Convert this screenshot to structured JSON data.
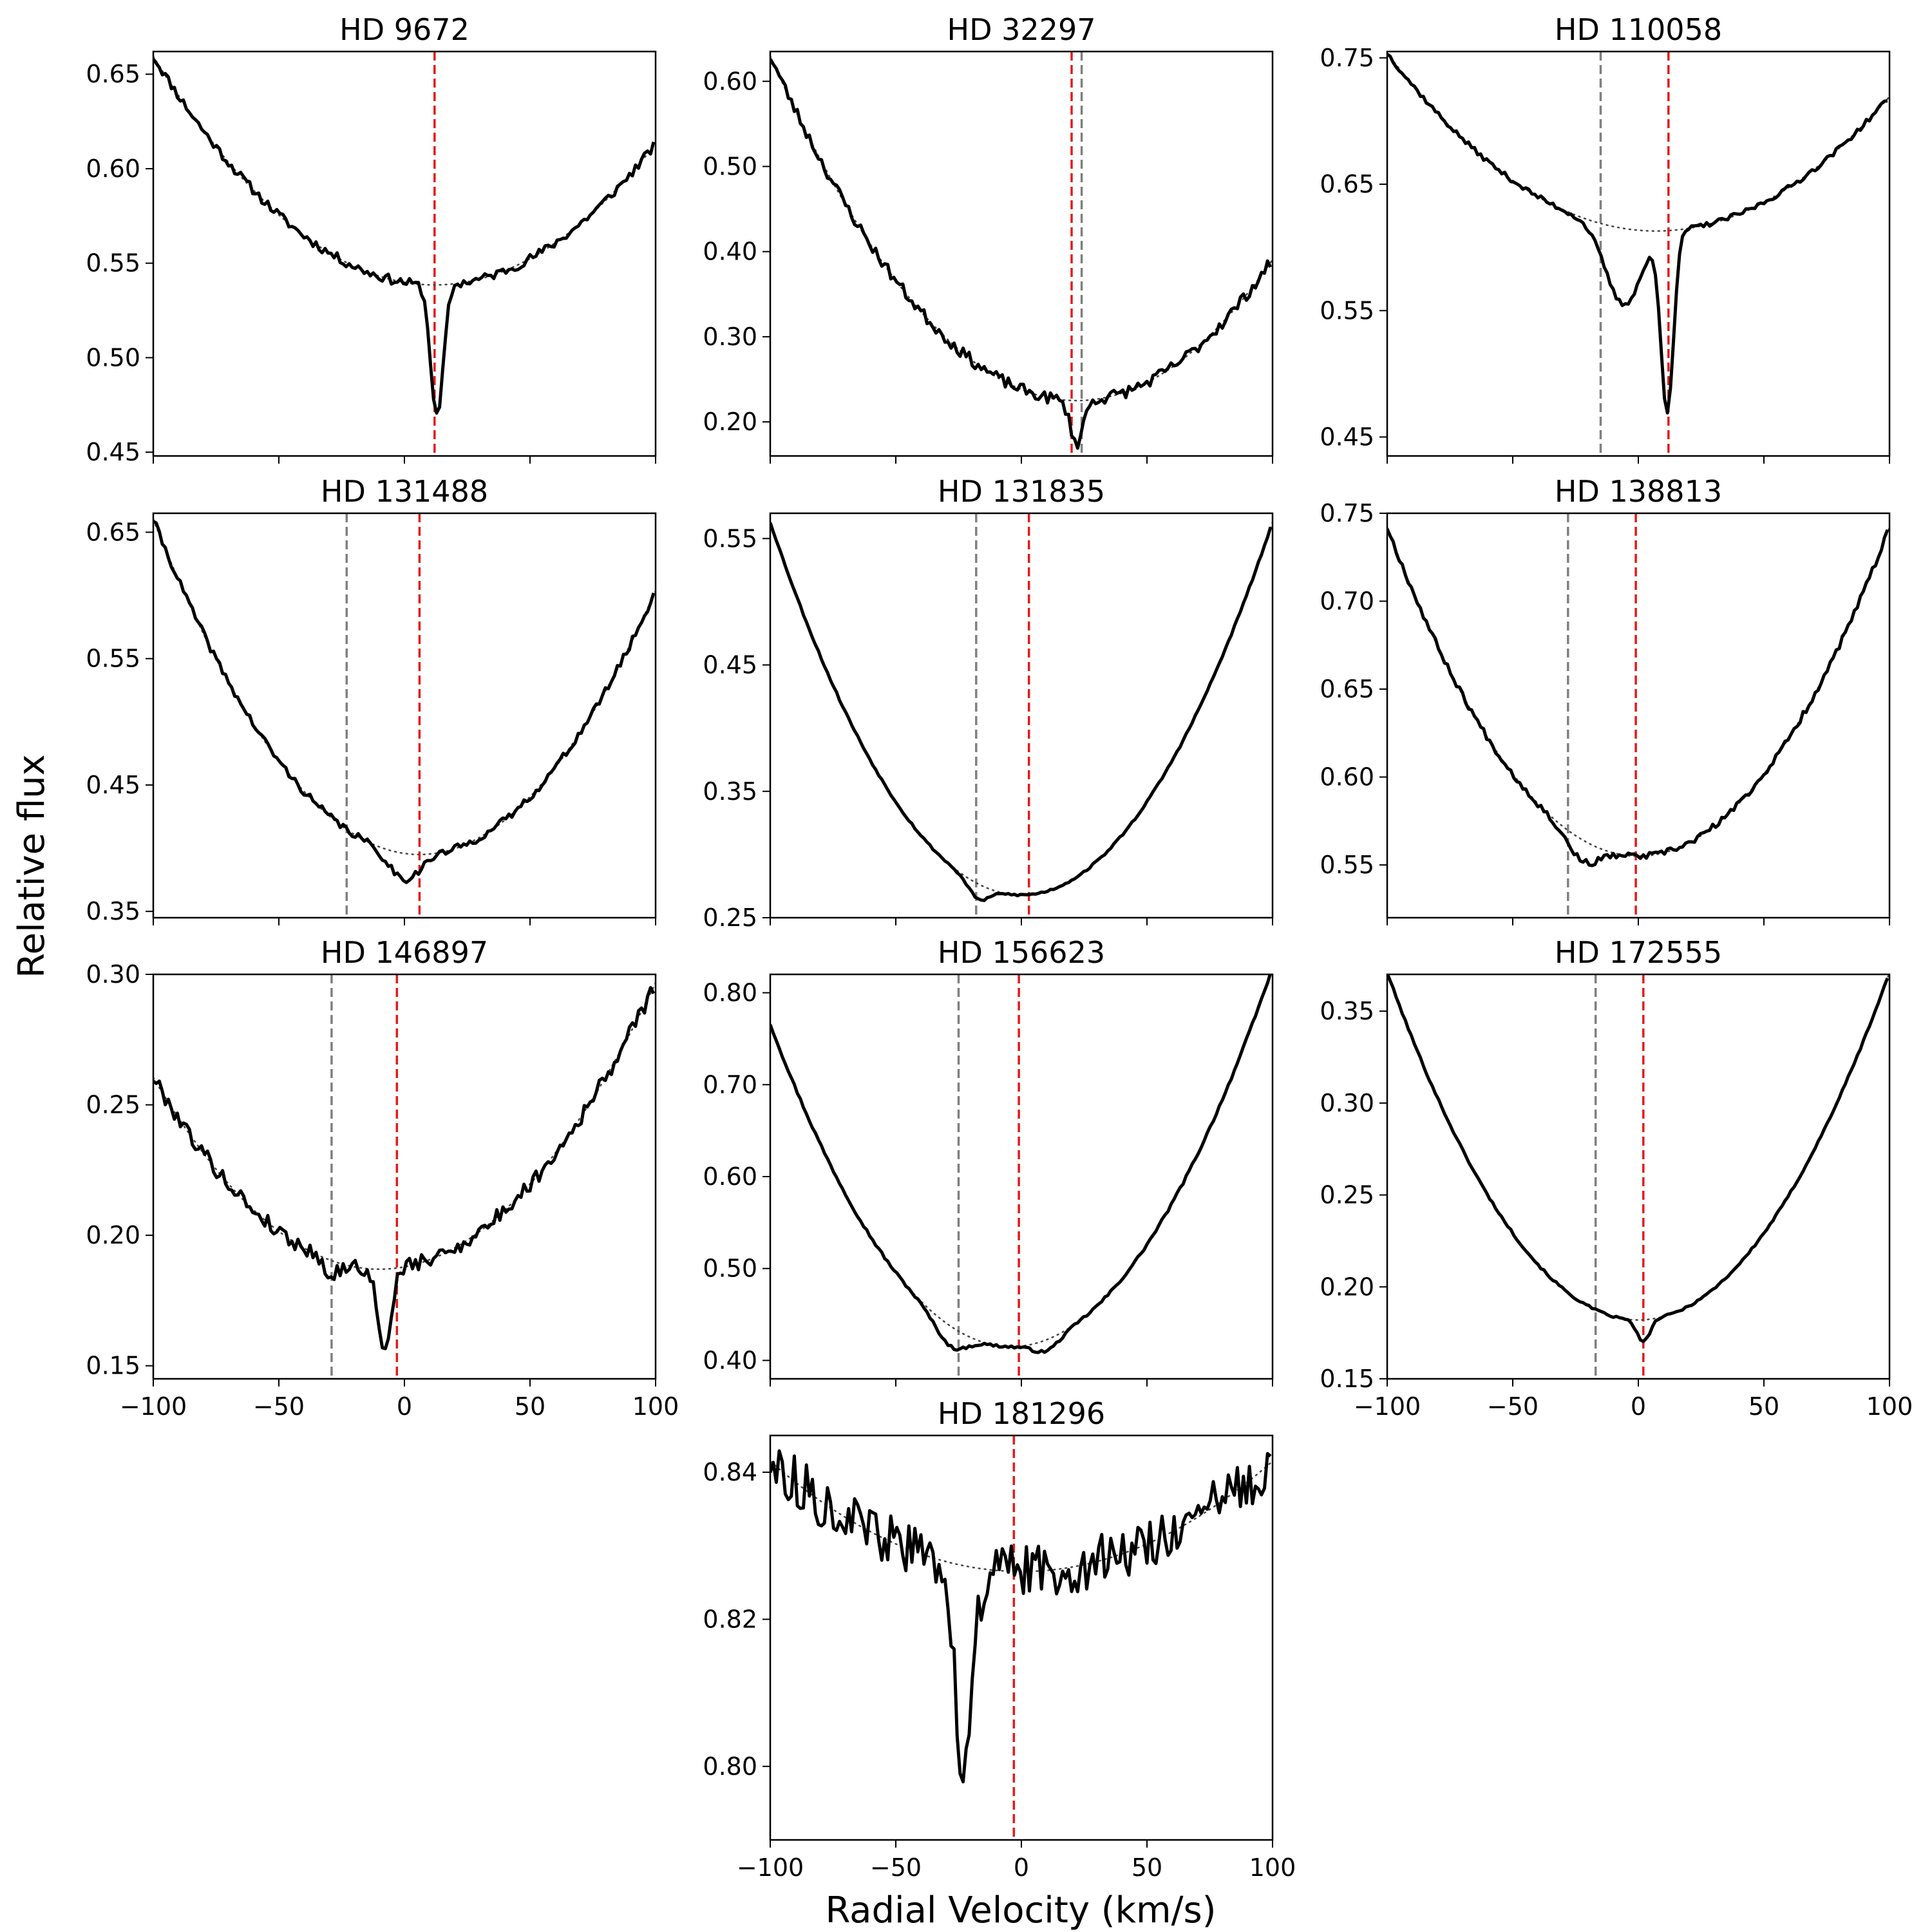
{
  "figure": {
    "xlabel": "Radial Velocity (km/s)",
    "ylabel": "Relative flux"
  },
  "style": {
    "profile_color": "#000000",
    "fit_color": "#444444",
    "rv_star_color": "#e31a1c",
    "rv_other_color": "#808080"
  },
  "chart_data": [
    {
      "type": "line",
      "title": "HD 9672",
      "xlim": [
        -100,
        100
      ],
      "ylim": [
        0.448,
        0.662
      ],
      "xticks": [
        -100,
        -50,
        0,
        50,
        100
      ],
      "xtick_labels_visible": false,
      "yticks": [
        0.45,
        0.5,
        0.55,
        0.6,
        0.65
      ],
      "ytick_labels": [
        "0.45",
        "0.50",
        "0.55",
        "0.60",
        "0.65"
      ],
      "vlines": [
        {
          "x": 12,
          "color": "red"
        }
      ],
      "fit": {
        "center": 12,
        "depth": 0.5385,
        "scale": 9.64e-06
      },
      "absorption": [
        {
          "center": 13,
          "width": 2.5,
          "depth": 0.07
        }
      ],
      "noise": 0.0025,
      "seed": 11
    },
    {
      "type": "line",
      "title": "HD 32297",
      "xlim": [
        -100,
        100
      ],
      "ylim": [
        0.16,
        0.635
      ],
      "xticks": [
        -100,
        -50,
        0,
        50,
        100
      ],
      "xtick_labels_visible": false,
      "yticks": [
        0.2,
        0.3,
        0.4,
        0.5,
        0.6
      ],
      "ytick_labels": [
        "0.20",
        "0.30",
        "0.40",
        "0.50",
        "0.60"
      ],
      "vlines": [
        {
          "x": 24,
          "color": "gray"
        },
        {
          "x": 20,
          "color": "red"
        }
      ],
      "fit": {
        "center": 22,
        "depth": 0.225,
        "scale": 2.72e-05
      },
      "absorption": [
        {
          "center": 22,
          "width": 2.5,
          "depth": 0.05
        }
      ],
      "noise": 0.007,
      "seed": 23
    },
    {
      "type": "line",
      "title": "HD 110058",
      "xlim": [
        -100,
        100
      ],
      "ylim": [
        0.435,
        0.755
      ],
      "xticks": [
        -100,
        -50,
        0,
        50,
        100
      ],
      "xtick_labels_visible": false,
      "yticks": [
        0.45,
        0.55,
        0.65,
        0.75
      ],
      "ytick_labels": [
        "0.45",
        "0.55",
        "0.65",
        "0.75"
      ],
      "vlines": [
        {
          "x": -15,
          "color": "gray"
        },
        {
          "x": 12,
          "color": "red"
        }
      ],
      "fit": {
        "center": 7,
        "depth": 0.613,
        "scale": 1.23e-05
      },
      "absorption": [
        {
          "center": -6,
          "width": 7,
          "depth": 0.06
        },
        {
          "center": 11.5,
          "width": 2.5,
          "depth": 0.14
        }
      ],
      "noise": 0.002,
      "seed": 37
    },
    {
      "type": "line",
      "title": "HD 131488",
      "xlim": [
        -100,
        100
      ],
      "ylim": [
        0.345,
        0.665
      ],
      "xticks": [
        -100,
        -50,
        0,
        50,
        100
      ],
      "xtick_labels_visible": false,
      "yticks": [
        0.35,
        0.45,
        0.55,
        0.65
      ],
      "ytick_labels": [
        "0.35",
        "0.45",
        "0.55",
        "0.65"
      ],
      "vlines": [
        {
          "x": -23,
          "color": "gray"
        },
        {
          "x": 6,
          "color": "red"
        }
      ],
      "fit": {
        "center": 6,
        "depth": 0.395,
        "scale": 2.36e-05
      },
      "absorption": [
        {
          "center": 0,
          "width": 6,
          "depth": 0.02
        }
      ],
      "noise": 0.003,
      "seed": 41
    },
    {
      "type": "line",
      "title": "HD 131835",
      "xlim": [
        -100,
        100
      ],
      "ylim": [
        0.25,
        0.57
      ],
      "xticks": [
        -100,
        -50,
        0,
        50,
        100
      ],
      "xtick_labels_visible": false,
      "yticks": [
        0.25,
        0.35,
        0.45,
        0.55
      ],
      "ytick_labels": [
        "0.25",
        "0.35",
        "0.45",
        "0.55"
      ],
      "vlines": [
        {
          "x": -18,
          "color": "gray"
        },
        {
          "x": 3,
          "color": "red"
        }
      ],
      "fit": {
        "center": 0,
        "depth": 0.268,
        "scale": 2.95e-05
      },
      "absorption": [
        {
          "center": -17,
          "width": 4,
          "depth": 0.012
        }
      ],
      "noise": 0.0008,
      "seed": 53
    },
    {
      "type": "line",
      "title": "HD 138813",
      "xlim": [
        -100,
        100
      ],
      "ylim": [
        0.52,
        0.75
      ],
      "xticks": [
        -100,
        -50,
        0,
        50,
        100
      ],
      "xtick_labels_visible": false,
      "yticks": [
        0.55,
        0.6,
        0.65,
        0.7,
        0.75
      ],
      "ytick_labels": [
        "0.55",
        "0.60",
        "0.65",
        "0.70",
        "0.75"
      ],
      "vlines": [
        {
          "x": -28,
          "color": "gray"
        },
        {
          "x": -1,
          "color": "red"
        }
      ],
      "fit": {
        "center": 0,
        "depth": 0.555,
        "scale": 1.87e-05
      },
      "absorption": [
        {
          "center": -22,
          "width": 6,
          "depth": 0.012
        }
      ],
      "noise": 0.0018,
      "seed": 67
    },
    {
      "type": "line",
      "title": "HD 146897",
      "xlim": [
        -100,
        100
      ],
      "ylim": [
        0.145,
        0.3
      ],
      "xticks": [
        -100,
        -50,
        0,
        50,
        100
      ],
      "xtick_labels": [
        "−100",
        "−50",
        "0",
        "50",
        "100"
      ],
      "yticks": [
        0.15,
        0.2,
        0.25,
        0.3
      ],
      "ytick_labels": [
        "0.15",
        "0.20",
        "0.25",
        "0.30"
      ],
      "vlines": [
        {
          "x": -29,
          "color": "gray"
        },
        {
          "x": -3,
          "color": "red"
        }
      ],
      "fit": {
        "center": -10,
        "depth": 0.187,
        "scale": 9.07e-06
      },
      "absorption": [
        {
          "center": -8,
          "width": 2.5,
          "depth": 0.033
        },
        {
          "center": -29,
          "width": 2.5,
          "depth": 0.006
        }
      ],
      "noise": 0.003,
      "seed": 79
    },
    {
      "type": "line",
      "title": "HD 156623",
      "xlim": [
        -100,
        100
      ],
      "ylim": [
        0.38,
        0.82
      ],
      "xticks": [
        -100,
        -50,
        0,
        50,
        100
      ],
      "xtick_labels_visible": false,
      "yticks": [
        0.4,
        0.5,
        0.6,
        0.7,
        0.8
      ],
      "ytick_labels": [
        "0.40",
        "0.50",
        "0.60",
        "0.70",
        "0.80"
      ],
      "vlines": [
        {
          "x": -25,
          "color": "gray"
        },
        {
          "x": -1,
          "color": "red"
        }
      ],
      "fit": {
        "center": -4,
        "depth": 0.415,
        "scale": 3.81e-05
      },
      "absorption": [
        {
          "center": -28,
          "width": 6,
          "depth": 0.022
        },
        {
          "center": 10,
          "width": 5,
          "depth": 0.012
        }
      ],
      "noise": 0.0015,
      "seed": 97
    },
    {
      "type": "line",
      "title": "HD 172555",
      "xlim": [
        -100,
        100
      ],
      "ylim": [
        0.15,
        0.37
      ],
      "xticks": [
        -100,
        -50,
        0,
        50,
        100
      ],
      "xtick_labels": [
        "−100",
        "−50",
        "0",
        "50",
        "100"
      ],
      "yticks": [
        0.15,
        0.2,
        0.25,
        0.3,
        0.35
      ],
      "ytick_labels": [
        "0.15",
        "0.20",
        "0.25",
        "0.30",
        "0.35"
      ],
      "vlines": [
        {
          "x": -17,
          "color": "gray"
        },
        {
          "x": 2,
          "color": "red"
        }
      ],
      "fit": {
        "center": 0,
        "depth": 0.182,
        "scale": 1.89e-05
      },
      "absorption": [
        {
          "center": 2,
          "width": 2.5,
          "depth": 0.012
        }
      ],
      "noise": 0.0006,
      "seed": 101
    },
    {
      "type": "line",
      "title": "HD 181296",
      "xlim": [
        -100,
        100
      ],
      "ylim": [
        0.79,
        0.845
      ],
      "xticks": [
        -100,
        -50,
        0,
        50,
        100
      ],
      "xtick_labels": [
        "−100",
        "−50",
        "0",
        "50",
        "100"
      ],
      "yticks": [
        0.8,
        0.82,
        0.84
      ],
      "ytick_labels": [
        "0.80",
        "0.82",
        "0.84"
      ],
      "vlines": [
        {
          "x": -3,
          "color": "red"
        }
      ],
      "fit": {
        "center": 0,
        "depth": 0.8265,
        "scale": 1.5e-06
      },
      "absorption": [
        {
          "center": -23,
          "width": 3.5,
          "depth": 0.027
        }
      ],
      "noise": 0.0035,
      "seed": 113
    }
  ]
}
